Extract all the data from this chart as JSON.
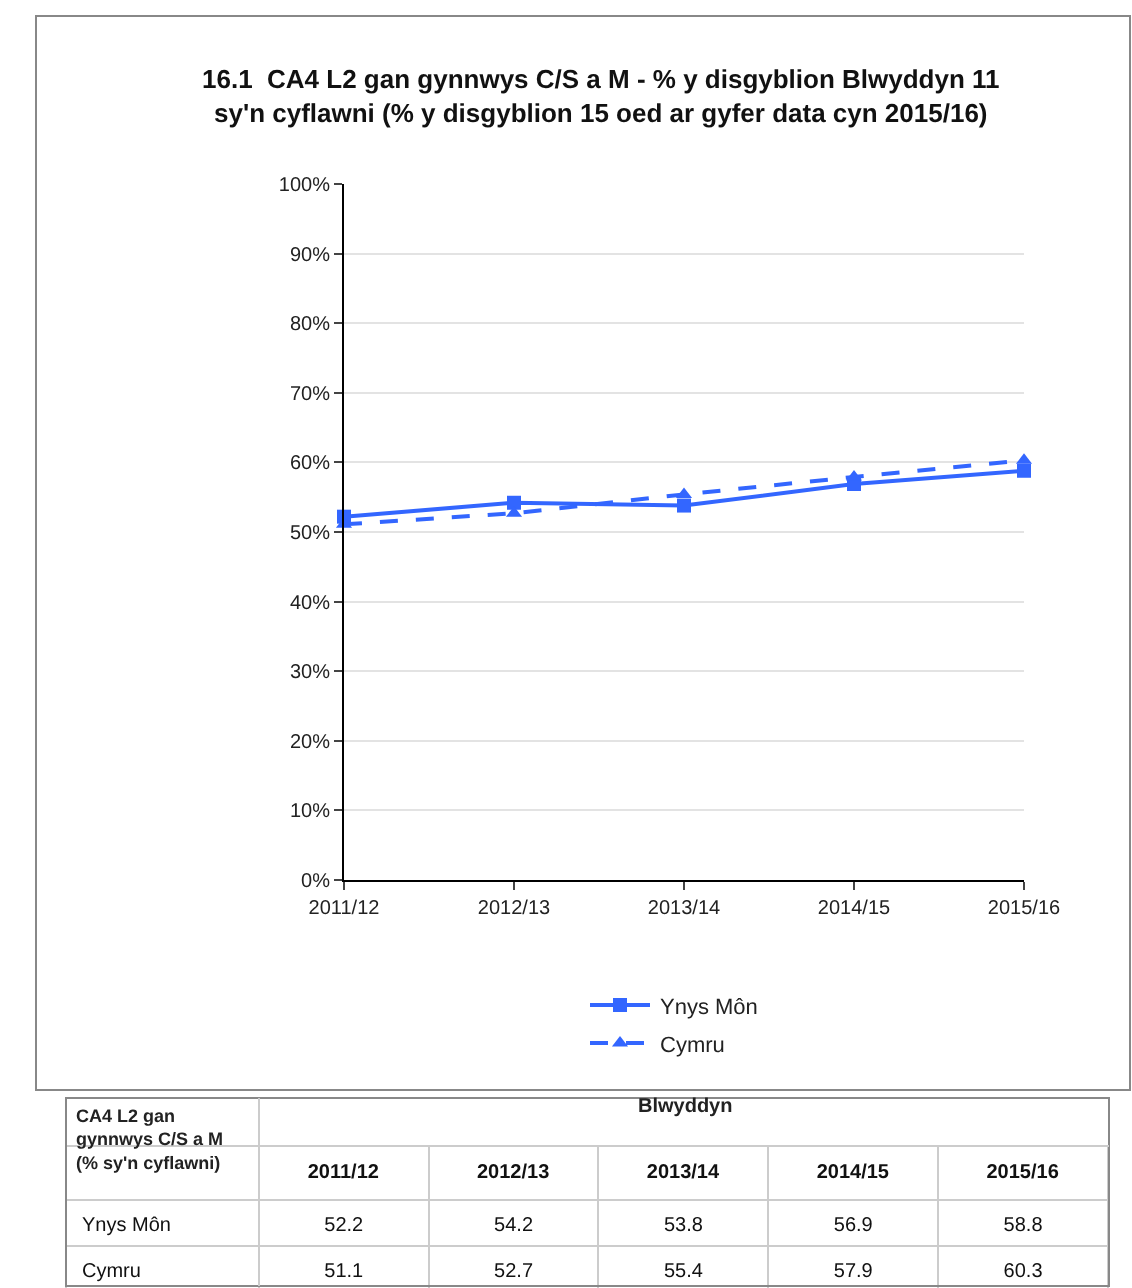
{
  "chart_data": {
    "type": "line",
    "title": "16.1  CA4 L2 gan gynnwys C/S a M - % y disgyblion Blwyddyn 11\nsy'n cyflawni (% y disgyblion 15 oed ar gyfer data cyn 2015/16)",
    "categories": [
      "2011/12",
      "2012/13",
      "2013/14",
      "2014/15",
      "2015/16"
    ],
    "series": [
      {
        "name": "Ynys Môn",
        "color": "#3366ff",
        "values": [
          52.2,
          54.2,
          53.8,
          56.9,
          58.8
        ],
        "marker": "square",
        "line_style": "solid"
      },
      {
        "name": "Cymru",
        "color": "#3366ff",
        "values": [
          51.1,
          52.7,
          55.4,
          57.9,
          60.3
        ],
        "marker": "triangle",
        "line_style": "dashed"
      }
    ],
    "ylim": [
      0,
      100
    ],
    "yticks": [
      {
        "value": 0,
        "label": "0%"
      },
      {
        "value": 10,
        "label": "10%"
      },
      {
        "value": 20,
        "label": "20%"
      },
      {
        "value": 30,
        "label": "30%"
      },
      {
        "value": 40,
        "label": "40%"
      },
      {
        "value": 50,
        "label": "50%"
      },
      {
        "value": 60,
        "label": "60%"
      },
      {
        "value": 70,
        "label": "70%"
      },
      {
        "value": 80,
        "label": "80%"
      },
      {
        "value": 90,
        "label": "90%"
      },
      {
        "value": 100,
        "label": "100%"
      }
    ],
    "grid": "y",
    "legend": "bottom",
    "data_labels": true,
    "annotations": [
      "CA4 L2 gan gynnwys C/S a M\n(% sy'n cyflawni)",
      "Blwyddyn"
    ]
  }
}
